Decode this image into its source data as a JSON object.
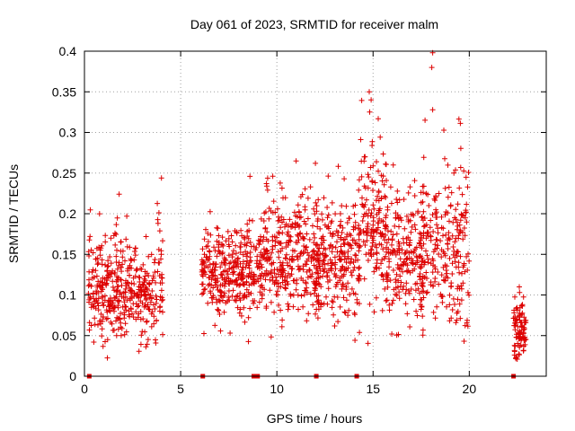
{
  "chart_data": {
    "type": "scatter",
    "title": "Day 061 of 2023, SRMTID for receiver malm",
    "xlabel": "GPS time / hours",
    "ylabel": "SRMTID / TECUs",
    "xlim": [
      0,
      24
    ],
    "ylim": [
      0,
      0.4
    ],
    "xticks": [
      0,
      5,
      10,
      15,
      20
    ],
    "yticks": [
      0,
      0.05,
      0.1,
      0.15,
      0.2,
      0.25,
      0.3,
      0.35,
      0.4
    ],
    "xtick_labels": [
      "0",
      "5",
      "10",
      "15",
      "20"
    ],
    "ytick_labels": [
      "0",
      "0.05",
      "0.1",
      "0.15",
      "0.2",
      "0.25",
      "0.3",
      "0.35",
      "0.4"
    ],
    "grid": true,
    "marker": "+",
    "series_color": "#dd0000",
    "gap_markers_x": [
      0.25,
      6.15,
      8.8,
      9.0,
      12.05,
      14.15,
      22.3
    ],
    "clusters": [
      {
        "x_start": 0.2,
        "x_end": 4.1,
        "center": 0.105,
        "spread": 0.035,
        "count": 420
      },
      {
        "x_start": 6.1,
        "x_end": 9.2,
        "center": 0.125,
        "spread": 0.03,
        "count": 330
      },
      {
        "x_start": 9.1,
        "x_end": 12.2,
        "center": 0.145,
        "spread": 0.04,
        "count": 330
      },
      {
        "x_start": 12.0,
        "x_end": 14.3,
        "center": 0.14,
        "spread": 0.04,
        "count": 240
      },
      {
        "x_start": 14.2,
        "x_end": 15.7,
        "center": 0.185,
        "spread": 0.05,
        "count": 160
      },
      {
        "x_start": 15.6,
        "x_end": 17.6,
        "center": 0.145,
        "spread": 0.045,
        "count": 200
      },
      {
        "x_start": 17.4,
        "x_end": 20.0,
        "center": 0.15,
        "spread": 0.05,
        "count": 250
      },
      {
        "x_start": 22.3,
        "x_end": 22.95,
        "center": 0.055,
        "spread": 0.018,
        "count": 90
      }
    ],
    "peaks": [
      {
        "x": 1.8,
        "y": 0.224
      },
      {
        "x": 4.0,
        "y": 0.244
      },
      {
        "x": 8.6,
        "y": 0.246
      },
      {
        "x": 11.0,
        "y": 0.265
      },
      {
        "x": 13.5,
        "y": 0.243
      },
      {
        "x": 14.8,
        "y": 0.35
      },
      {
        "x": 14.9,
        "y": 0.34
      },
      {
        "x": 18.1,
        "y": 0.398
      },
      {
        "x": 18.05,
        "y": 0.38
      },
      {
        "x": 18.1,
        "y": 0.328
      },
      {
        "x": 17.7,
        "y": 0.315
      },
      {
        "x": 19.2,
        "y": 0.25
      },
      {
        "x": 22.6,
        "y": 0.11
      }
    ]
  }
}
